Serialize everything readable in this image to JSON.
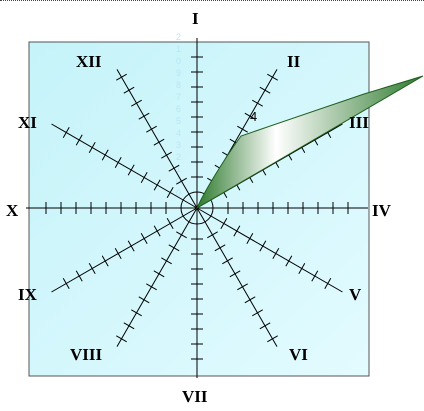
{
  "colors": {
    "panel_fill_top": "#c4f3f9",
    "panel_fill_bottom": "#e3fbff",
    "panel_border": "#555555",
    "axis": "#000000",
    "wedge_dark": "#2f7a2f",
    "wedge_light": "#ffffff",
    "faint_scale": "#b8e6f6"
  },
  "labels": {
    "I": "I",
    "II": "II",
    "III": "III",
    "IV": "IV",
    "V": "V",
    "VI": "VI",
    "VII": "VII",
    "VIII": "VIII",
    "IX": "IX",
    "X": "X",
    "XI": "XI",
    "XII": "XII"
  },
  "marker_value": "4",
  "faint_scale": [
    "2",
    "1",
    "0",
    "9",
    "8",
    "7",
    "6",
    "5",
    "4",
    "3",
    "2",
    "1",
    "0",
    "0"
  ]
}
